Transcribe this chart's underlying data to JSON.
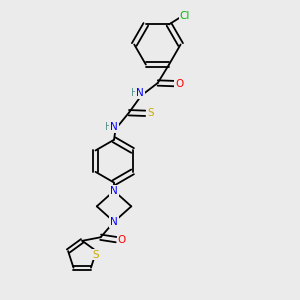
{
  "background_color": "#ebebeb",
  "atom_colors": {
    "C": "#000000",
    "N": "#0000ff",
    "O": "#ff0000",
    "S": "#ccaa00",
    "Cl": "#00bb00",
    "H": "#5a9090"
  },
  "figsize": [
    3.0,
    3.0
  ],
  "dpi": 100,
  "lw": 1.3,
  "fontsize": 7.5,
  "xlim": [
    0,
    10
  ],
  "ylim": [
    0,
    10
  ]
}
